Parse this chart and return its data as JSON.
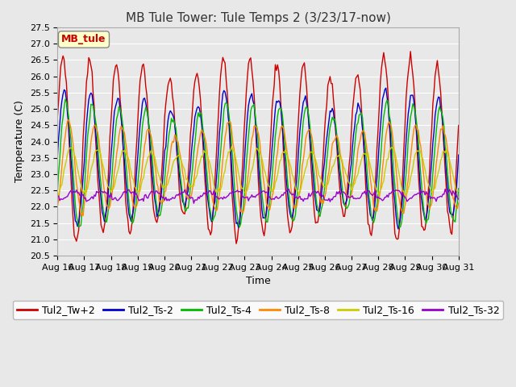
{
  "title": "MB Tule Tower: Tule Temps 2 (3/23/17-now)",
  "xlabel": "Time",
  "ylabel": "Temperature (C)",
  "ylim": [
    20.5,
    27.5
  ],
  "xlim_days": 15,
  "x_tick_labels": [
    "Aug 16",
    "Aug 17",
    "Aug 18",
    "Aug 19",
    "Aug 20",
    "Aug 21",
    "Aug 22",
    "Aug 23",
    "Aug 24",
    "Aug 25",
    "Aug 26",
    "Aug 27",
    "Aug 28",
    "Aug 29",
    "Aug 30",
    "Aug 31"
  ],
  "series_colors": [
    "#cc0000",
    "#0000cc",
    "#00bb00",
    "#ff8800",
    "#cccc00",
    "#9900cc"
  ],
  "series_labels": [
    "Tul2_Tw+2",
    "Tul2_Ts-2",
    "Tul2_Ts-4",
    "Tul2_Ts-8",
    "Tul2_Ts-16",
    "Tul2_Ts-32"
  ],
  "legend_box_label": "MB_tule",
  "legend_box_color": "#cc0000",
  "legend_box_bg": "#ffffcc",
  "plot_bg_color": "#e8e8e8",
  "axes_bg_color": "#e8e8e8",
  "grid_color": "#ffffff",
  "title_fontsize": 11,
  "axis_fontsize": 9,
  "tick_fontsize": 8,
  "legend_fontsize": 9
}
